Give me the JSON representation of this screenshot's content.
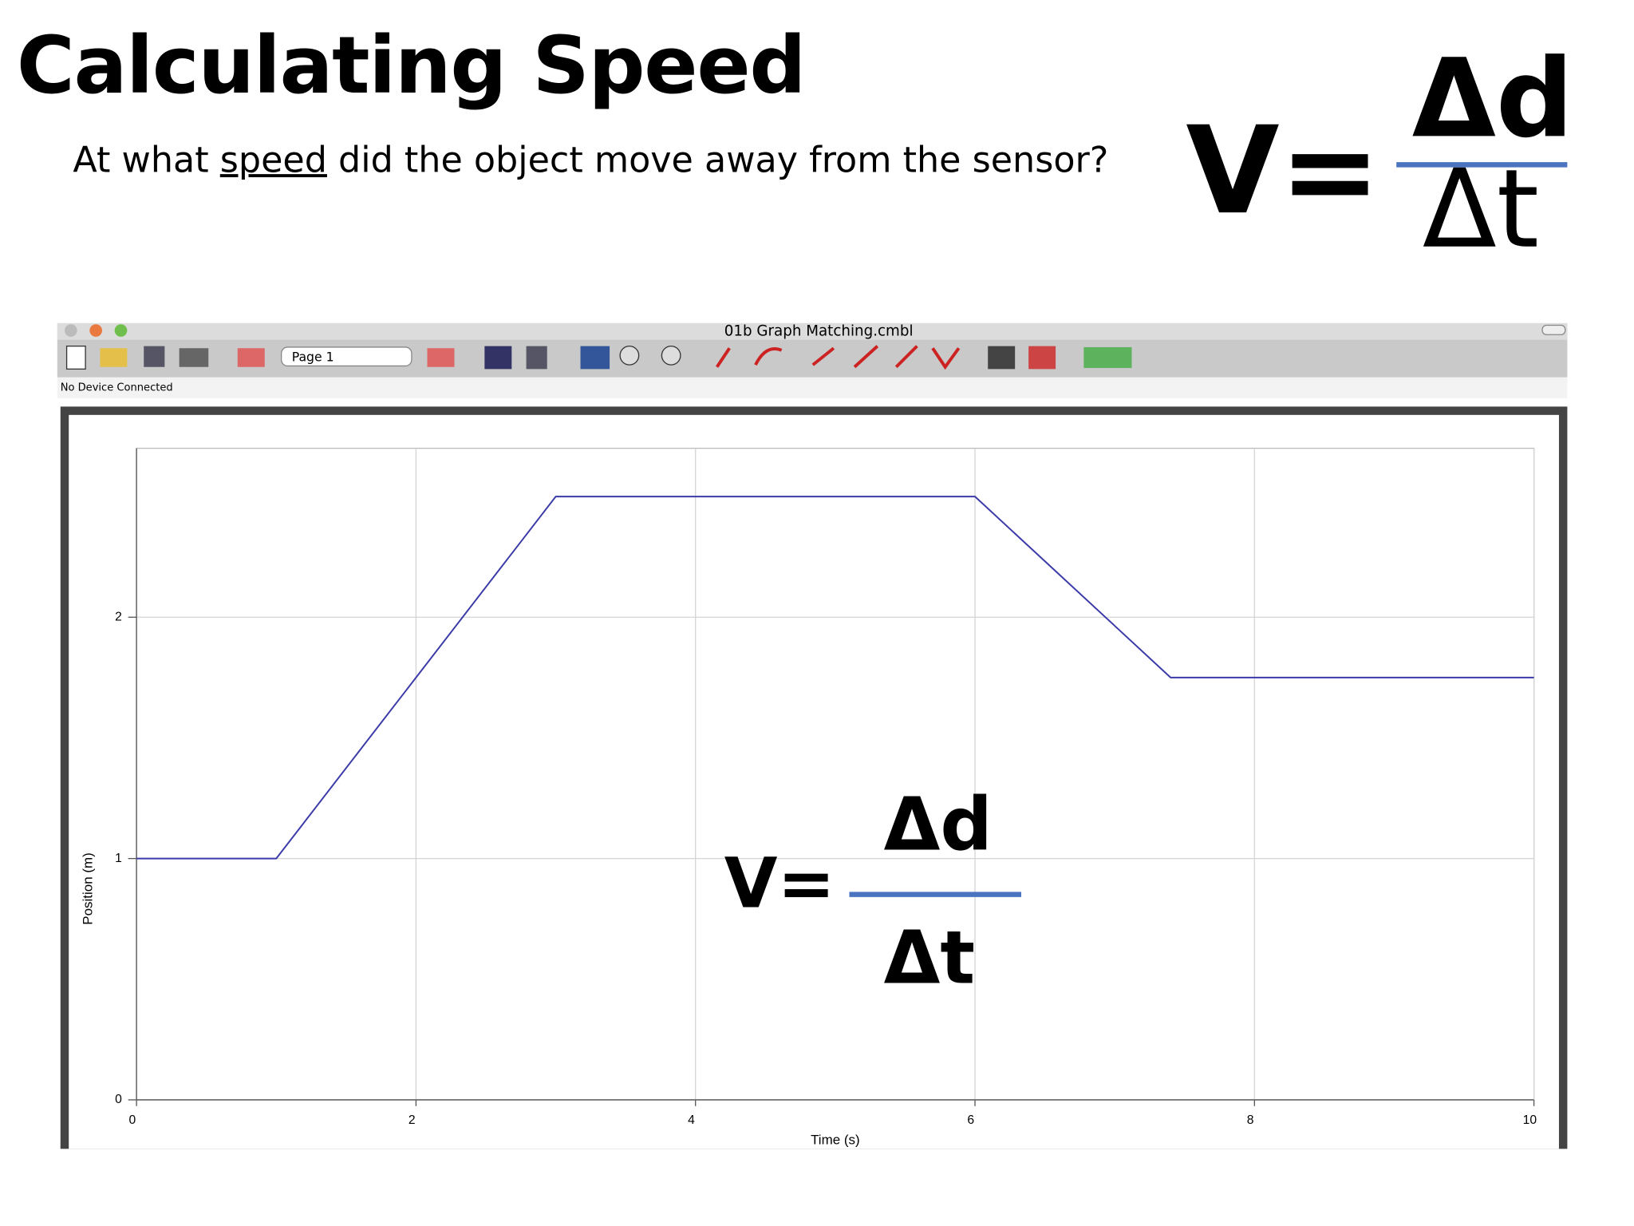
{
  "slide": {
    "title": "Calculating Speed",
    "question_parts": [
      "At what ",
      "speed",
      " did the object move away from the sensor?"
    ],
    "formula": {
      "lhs": "V=",
      "numerator": "Δd",
      "denominator": "Δt"
    }
  },
  "window": {
    "title": "01b Graph Matching.cmbl",
    "page_select": "Page 1",
    "status": "No Device Connected"
  },
  "chart_data": {
    "type": "line",
    "x": [
      0,
      1,
      3,
      6,
      7.4,
      10
    ],
    "series": [
      {
        "color": "#3a3aa8",
        "values": [
          1,
          1,
          2.5,
          2.5,
          1.75,
          1.75
        ]
      }
    ],
    "xlim": [
      0,
      10
    ],
    "ylim": [
      0,
      2.7
    ],
    "xticks": [
      0,
      2,
      4,
      6,
      8,
      10
    ],
    "yticks": [
      0,
      1,
      2
    ],
    "xlabel": "Time (s)",
    "ylabel": "Position (m)",
    "grid": true,
    "annotation": {
      "lhs": "V=",
      "numerator": "Δd",
      "denominator": "Δt"
    }
  }
}
